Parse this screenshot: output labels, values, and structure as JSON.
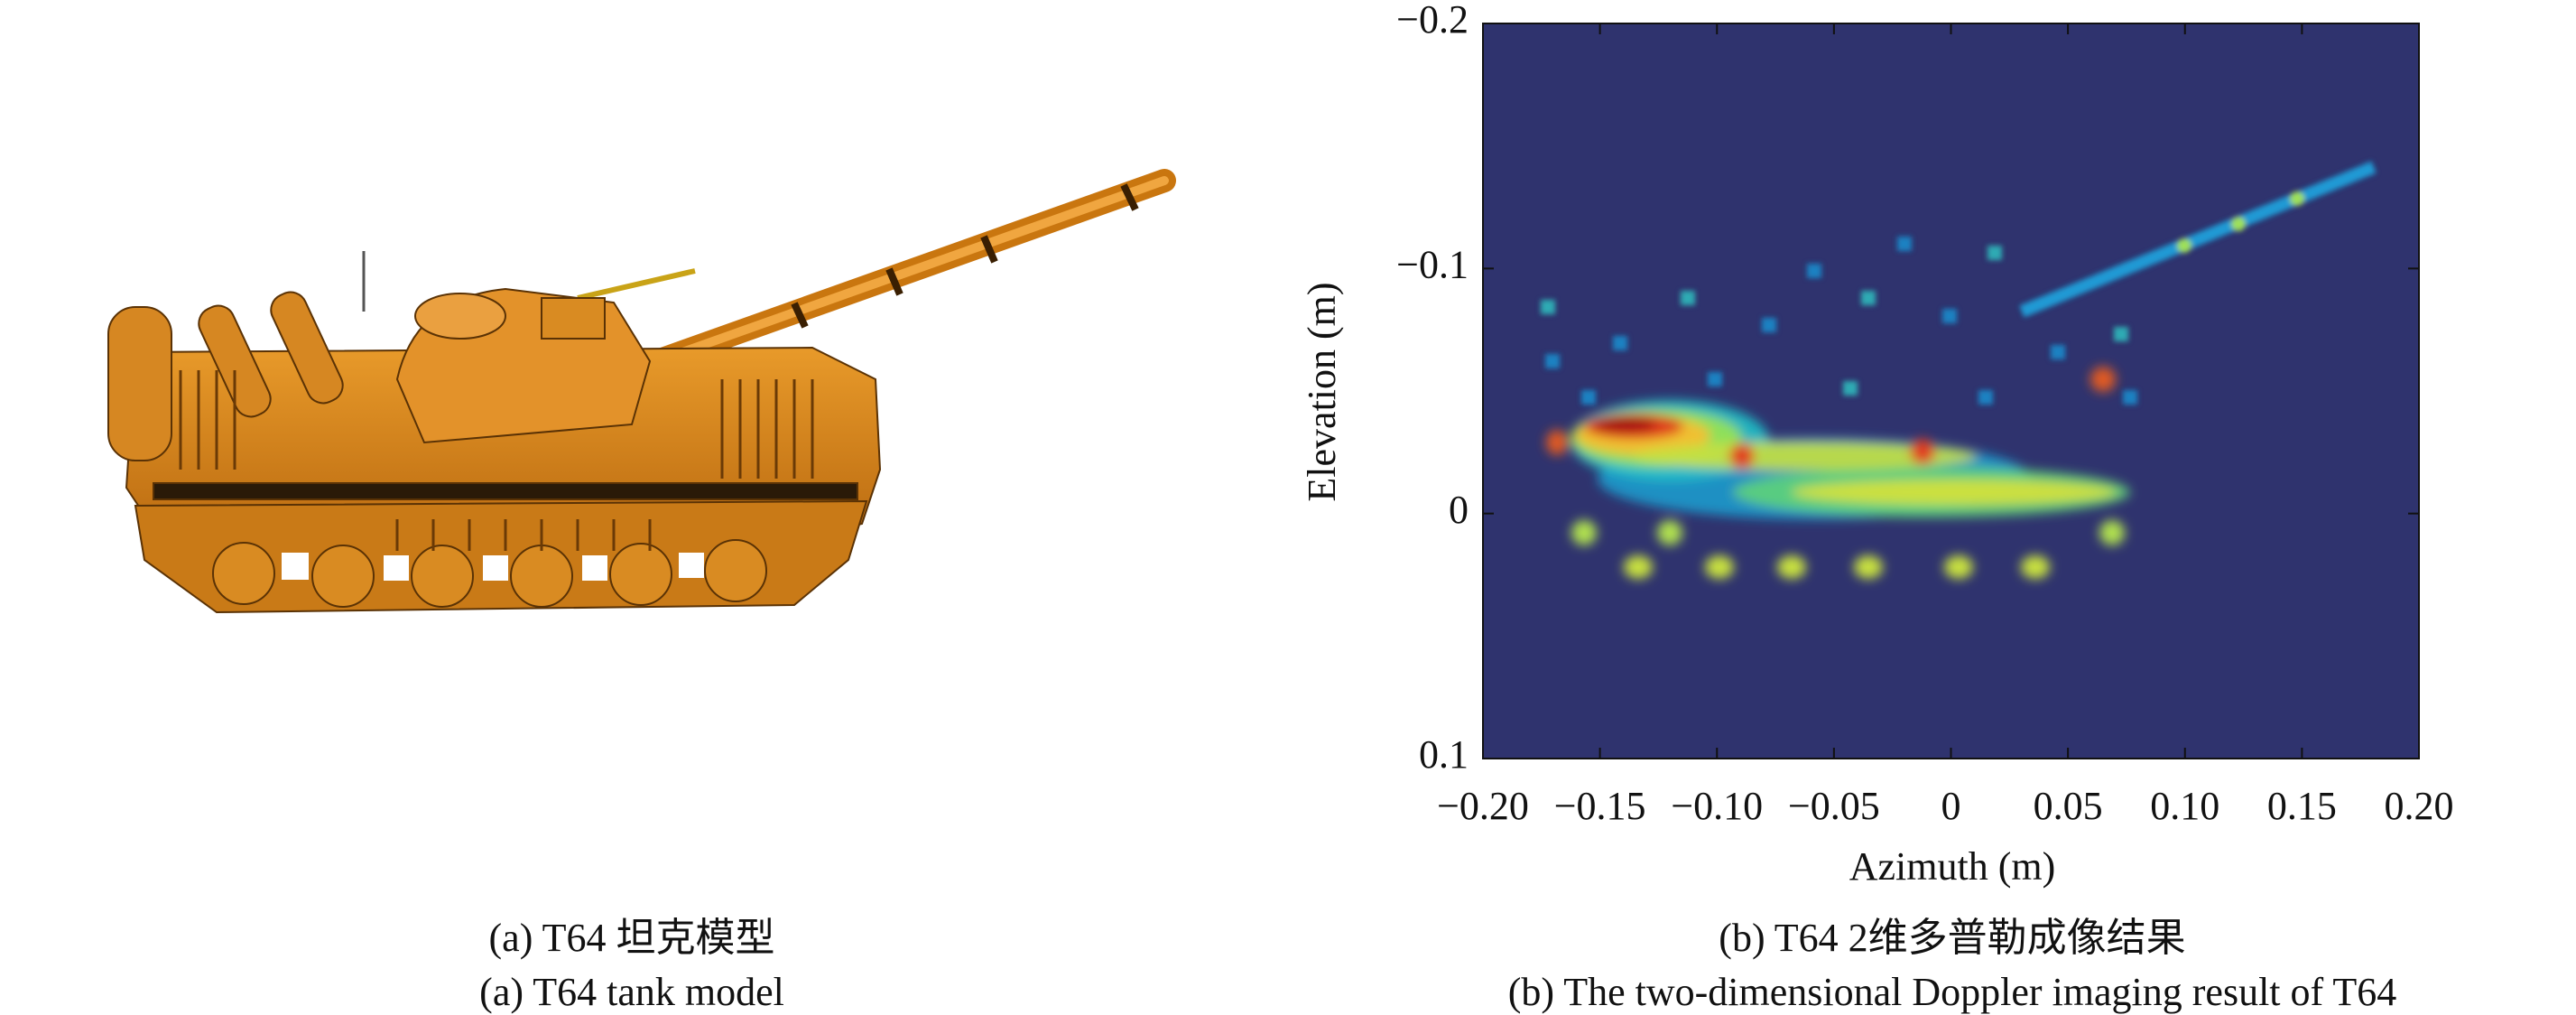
{
  "panels": [
    {
      "caption_zh": "(a) T64 坦克模型",
      "caption_en": "(a) T64 tank model"
    },
    {
      "caption_zh": "(b) T64 2维多普勒成像结果",
      "caption_en": "(b) The two-dimensional Doppler imaging result of T64",
      "plot": {
        "xlabel": "Azimuth (m)",
        "ylabel": "Elevation (m)",
        "xlim": [
          -0.2,
          0.2
        ],
        "ylim": [
          -0.2,
          0.1
        ],
        "xticks": [
          {
            "value": -0.2,
            "label": "−0.20"
          },
          {
            "value": -0.15,
            "label": "−0.15"
          },
          {
            "value": -0.1,
            "label": "−0.10"
          },
          {
            "value": -0.05,
            "label": "−0.05"
          },
          0,
          0.05,
          {
            "value": 0.1,
            "label": "0.10"
          },
          0.15,
          {
            "value": 0.2,
            "label": "0.20"
          }
        ],
        "yticks": [
          {
            "value": -0.2,
            "label": "−0.2"
          },
          {
            "value": -0.1,
            "label": "−0.1"
          },
          0,
          0.1
        ]
      }
    }
  ]
}
